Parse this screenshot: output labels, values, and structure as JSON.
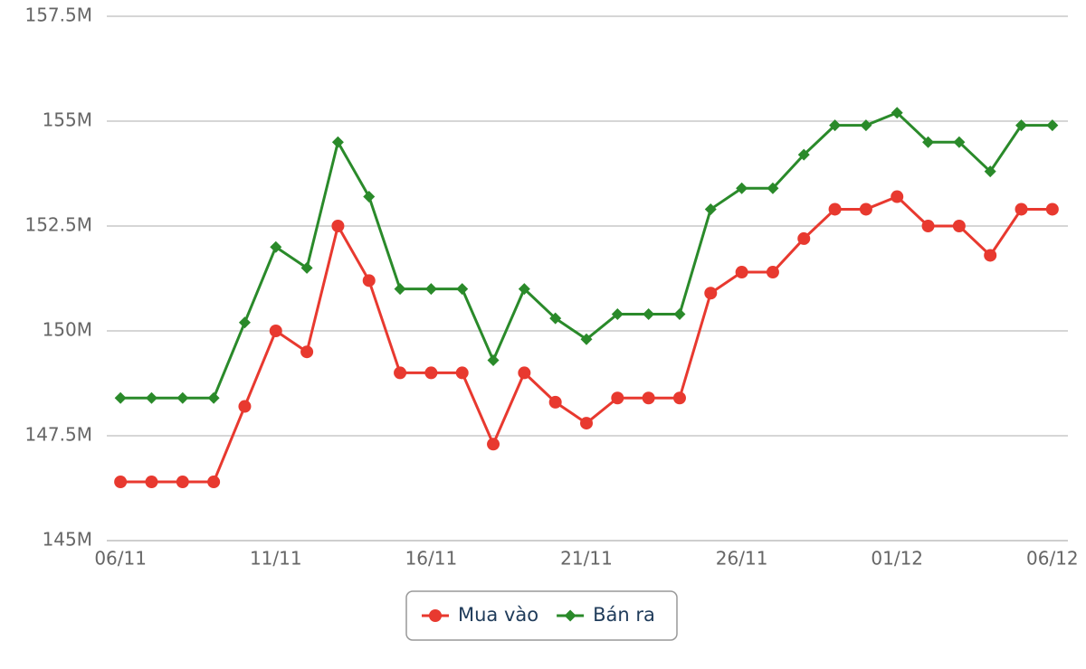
{
  "chart_data": {
    "type": "line",
    "categories": [
      "06/11",
      null,
      null,
      null,
      null,
      "11/11",
      null,
      null,
      null,
      null,
      "16/11",
      null,
      null,
      null,
      null,
      "21/11",
      null,
      null,
      null,
      null,
      "26/11",
      null,
      null,
      null,
      null,
      "01/12",
      null,
      null,
      null,
      null,
      "06/12"
    ],
    "series": [
      {
        "name": "Mua vào",
        "color": "#e8392f",
        "marker": "circle",
        "values": [
          146.4,
          146.4,
          146.4,
          146.4,
          148.2,
          150.0,
          149.5,
          152.5,
          151.2,
          149.0,
          149.0,
          149.0,
          147.3,
          149.0,
          148.3,
          147.8,
          148.4,
          148.4,
          148.4,
          150.9,
          151.4,
          151.4,
          152.2,
          152.9,
          152.9,
          153.2,
          152.5,
          152.5,
          151.8,
          152.9,
          152.9
        ]
      },
      {
        "name": "Bán ra",
        "color": "#2a8a2a",
        "marker": "diamond",
        "values": [
          148.4,
          148.4,
          148.4,
          148.4,
          150.2,
          152.0,
          151.5,
          154.5,
          153.2,
          151.0,
          151.0,
          151.0,
          149.3,
          151.0,
          150.3,
          149.8,
          150.4,
          150.4,
          150.4,
          152.9,
          153.4,
          153.4,
          154.2,
          154.9,
          154.9,
          155.2,
          154.5,
          154.5,
          153.8,
          154.9,
          154.9
        ]
      }
    ],
    "ylim": [
      145,
      157.5
    ],
    "yticks": [
      {
        "value": 145,
        "label": "145M"
      },
      {
        "value": 147.5,
        "label": "147.5M"
      },
      {
        "value": 150,
        "label": "150M"
      },
      {
        "value": 152.5,
        "label": "152.5M"
      },
      {
        "value": 155,
        "label": "155M"
      },
      {
        "value": 157.5,
        "label": "157.5M"
      }
    ],
    "grid": true,
    "legend": "bottom"
  }
}
